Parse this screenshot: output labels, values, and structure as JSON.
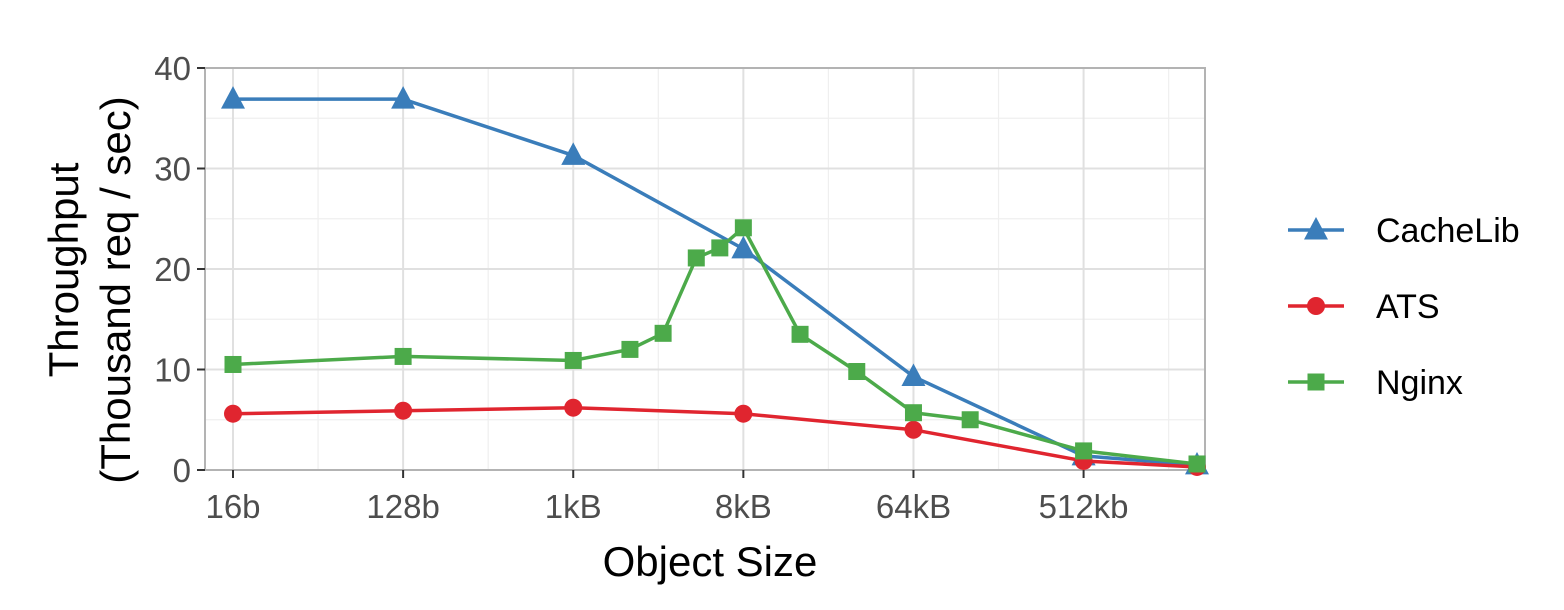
{
  "chart_data": {
    "type": "line",
    "title": "",
    "xlabel": "Object Size",
    "ylabel": [
      "Throughput",
      "(Thousand req / sec)"
    ],
    "x_scale": "log2",
    "x_unit": "bytes",
    "xlim": [
      16,
      2097152
    ],
    "x_ticks": [
      {
        "value": 16,
        "label": "16b"
      },
      {
        "value": 128,
        "label": "128b"
      },
      {
        "value": 1024,
        "label": "1kB"
      },
      {
        "value": 8192,
        "label": "8kB"
      },
      {
        "value": 65536,
        "label": "64kB"
      },
      {
        "value": 524288,
        "label": "512kb"
      }
    ],
    "ylim": [
      0,
      40
    ],
    "y_ticks": [
      {
        "value": 0,
        "label": "0"
      },
      {
        "value": 10,
        "label": "10"
      },
      {
        "value": 20,
        "label": "20"
      },
      {
        "value": 30,
        "label": "30"
      },
      {
        "value": 40,
        "label": "40"
      }
    ],
    "grid": true,
    "legend_position": "right",
    "series": [
      {
        "name": "CacheLib",
        "color": "#3a7dba",
        "marker": "triangle",
        "points": [
          {
            "x": 16,
            "y": 36.9
          },
          {
            "x": 128,
            "y": 36.9
          },
          {
            "x": 1024,
            "y": 31.3
          },
          {
            "x": 8192,
            "y": 22.0
          },
          {
            "x": 65536,
            "y": 9.3
          },
          {
            "x": 524288,
            "y": 1.4
          },
          {
            "x": 2097152,
            "y": 0.5
          }
        ]
      },
      {
        "name": "ATS",
        "color": "#e0252f",
        "marker": "circle",
        "points": [
          {
            "x": 16,
            "y": 5.6
          },
          {
            "x": 128,
            "y": 5.9
          },
          {
            "x": 1024,
            "y": 6.2
          },
          {
            "x": 8192,
            "y": 5.6
          },
          {
            "x": 65536,
            "y": 4.0
          },
          {
            "x": 524288,
            "y": 0.9
          },
          {
            "x": 2097152,
            "y": 0.3
          }
        ]
      },
      {
        "name": "Nginx",
        "color": "#4caa4a",
        "marker": "square",
        "points": [
          {
            "x": 16,
            "y": 10.5
          },
          {
            "x": 128,
            "y": 11.3
          },
          {
            "x": 1024,
            "y": 10.9
          },
          {
            "x": 2048,
            "y": 12.0
          },
          {
            "x": 3072,
            "y": 13.6
          },
          {
            "x": 4608,
            "y": 21.1
          },
          {
            "x": 6144,
            "y": 22.1
          },
          {
            "x": 8192,
            "y": 24.1
          },
          {
            "x": 16384,
            "y": 13.5
          },
          {
            "x": 32768,
            "y": 9.8
          },
          {
            "x": 65536,
            "y": 5.7
          },
          {
            "x": 131072,
            "y": 5.0
          },
          {
            "x": 524288,
            "y": 1.9
          },
          {
            "x": 2097152,
            "y": 0.6
          }
        ]
      }
    ]
  }
}
